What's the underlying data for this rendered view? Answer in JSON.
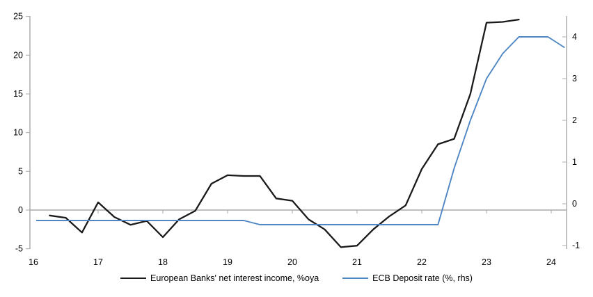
{
  "chart_data": {
    "type": "line",
    "title": "",
    "x_tick_labels": [
      "16",
      "17",
      "18",
      "19",
      "20",
      "21",
      "22",
      "23",
      "24"
    ],
    "x_tick_years": [
      16,
      17,
      18,
      19,
      20,
      21,
      22,
      23,
      24
    ],
    "left_axis": {
      "ticks": [
        25,
        20,
        15,
        10,
        5,
        0,
        -5
      ],
      "range": [
        -5,
        25
      ]
    },
    "right_axis": {
      "ticks": [
        4,
        3,
        2,
        1,
        0,
        -1
      ],
      "range": [
        -1.1,
        4.5
      ]
    },
    "grid": "zero-line-only",
    "legend_position": "bottom-center",
    "series": [
      {
        "name": "European Banks' net interest income, %oya",
        "axis": "left",
        "color": "#1a1a1a",
        "points": [
          [
            16.25,
            -0.7
          ],
          [
            16.5,
            -1.0
          ],
          [
            16.75,
            -2.9
          ],
          [
            17.0,
            1.0
          ],
          [
            17.25,
            -0.9
          ],
          [
            17.5,
            -1.9
          ],
          [
            17.75,
            -1.4
          ],
          [
            18.0,
            -3.5
          ],
          [
            18.25,
            -1.2
          ],
          [
            18.5,
            -0.1
          ],
          [
            18.75,
            3.4
          ],
          [
            19.0,
            4.5
          ],
          [
            19.25,
            4.4
          ],
          [
            19.5,
            4.4
          ],
          [
            19.75,
            1.5
          ],
          [
            20.0,
            1.2
          ],
          [
            20.25,
            -1.2
          ],
          [
            20.5,
            -2.5
          ],
          [
            20.75,
            -4.8
          ],
          [
            21.0,
            -4.6
          ],
          [
            21.25,
            -2.5
          ],
          [
            21.5,
            -0.8
          ],
          [
            21.75,
            0.6
          ],
          [
            22.0,
            5.3
          ],
          [
            22.25,
            8.5
          ],
          [
            22.5,
            9.2
          ],
          [
            22.75,
            15.0
          ],
          [
            23.0,
            24.2
          ],
          [
            23.25,
            24.3
          ],
          [
            23.5,
            24.6
          ]
        ]
      },
      {
        "name": "ECB Deposit rate (%, rhs)",
        "axis": "right",
        "color": "#4e86c3",
        "points": [
          [
            16.05,
            -0.4
          ],
          [
            19.25,
            -0.4
          ],
          [
            19.5,
            -0.5
          ],
          [
            22.25,
            -0.5
          ],
          [
            22.5,
            0.85
          ],
          [
            22.75,
            2.0
          ],
          [
            23.0,
            3.0
          ],
          [
            23.25,
            3.6
          ],
          [
            23.5,
            4.0
          ],
          [
            23.95,
            4.0
          ],
          [
            24.2,
            3.75
          ]
        ]
      }
    ]
  },
  "colors": {
    "axis": "#a8a8a8",
    "background": "#ffffff",
    "text": "#000000"
  }
}
